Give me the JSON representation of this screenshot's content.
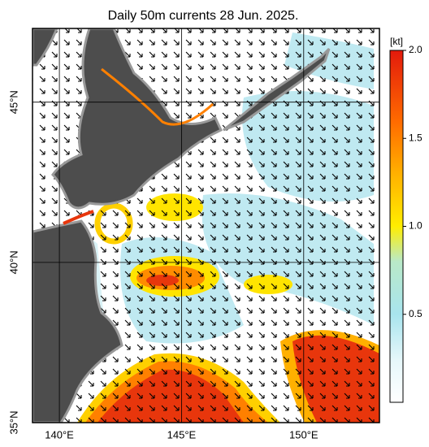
{
  "chart_data": {
    "type": "map",
    "title": "Daily 50m currents 28 Jun. 2025.",
    "xlim": [
      138.9,
      153.1
    ],
    "ylim": [
      35,
      47.3
    ],
    "xticks": [
      {
        "value": 140,
        "label": "140°E"
      },
      {
        "value": 145,
        "label": "145°E"
      },
      {
        "value": 150,
        "label": "150°E"
      }
    ],
    "yticks": [
      {
        "value": 35,
        "label": "35°N"
      },
      {
        "value": 40,
        "label": "40°N"
      },
      {
        "value": 45,
        "label": "45°N"
      }
    ],
    "grid": true,
    "colorbar": {
      "label": "[kt]",
      "lim": [
        0,
        2.0
      ],
      "ticks": [
        0.5,
        {
          "value": 1,
          "label": "1.0"
        },
        1.5,
        {
          "value": 2,
          "label": "2.0"
        }
      ]
    }
  }
}
